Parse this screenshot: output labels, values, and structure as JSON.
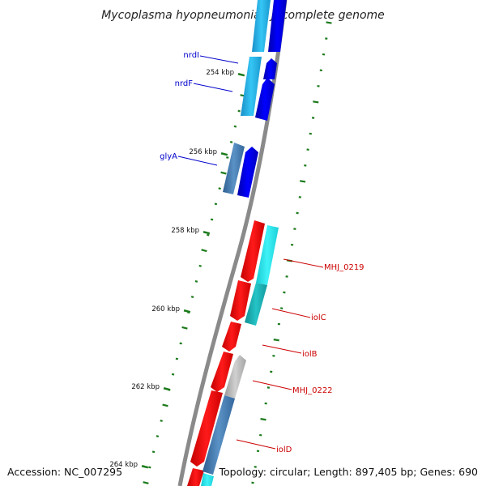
{
  "title": "Mycoplasma hyopneumoniae J, complete genome",
  "accession": "Accession: NC_007295",
  "summary": "Topology: circular; Length: 897,405 bp; Genes: 690",
  "colors": {
    "backbone": "#8a8a8a",
    "tick": "#1b7a1b",
    "label_blue": "#0000cc",
    "label_red": "#cc0000",
    "gene_blue": "#0000ee",
    "gene_lightblue": "#29b6ee",
    "gene_steelblue": "#4a7fb5",
    "gene_red": "#ee0000",
    "gene_cyan": "#22e6ee",
    "gene_teal": "#1ab7b7",
    "gene_grey": "#b8b8b8"
  },
  "kbp_labels": [
    "254 kbp",
    "256 kbp",
    "258 kbp",
    "260 kbp",
    "262 kbp",
    "264 kbp"
  ],
  "genes": [
    {
      "name": "nrdI",
      "color": "label_blue"
    },
    {
      "name": "nrdF",
      "color": "label_blue"
    },
    {
      "name": "glyA",
      "color": "label_blue"
    },
    {
      "name": "MHJ_0219",
      "color": "label_red"
    },
    {
      "name": "iolC",
      "color": "label_red"
    },
    {
      "name": "iolB",
      "color": "label_red"
    },
    {
      "name": "MHJ_0222",
      "color": "label_red"
    },
    {
      "name": "iolD",
      "color": "label_red"
    }
  ]
}
